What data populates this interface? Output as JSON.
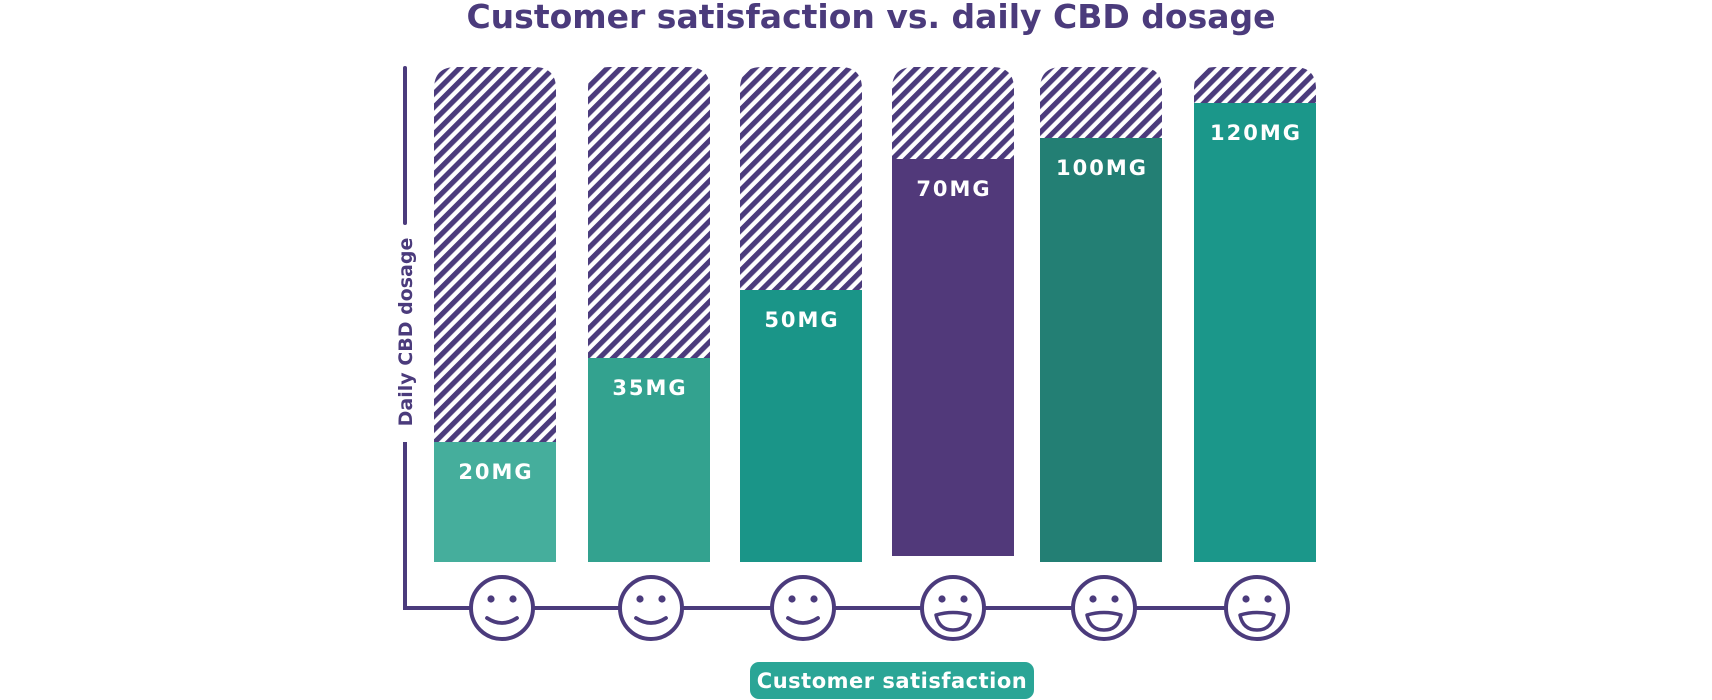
{
  "chart_data": {
    "type": "bar",
    "title": "Customer satisfaction vs. daily CBD dosage",
    "xlabel": "Customer satisfaction",
    "ylabel": "Daily CBD dosage",
    "ylim": [
      0,
      130
    ],
    "unit": "MG",
    "categories": [
      "smile-1",
      "smile-2",
      "smile-3",
      "grin-4",
      "grin-5",
      "grin-6"
    ],
    "values": [
      20,
      35,
      50,
      70,
      100,
      120
    ],
    "labels": [
      "20MG",
      "35MG",
      "50MG",
      "70MG",
      "100MG",
      "120MG"
    ],
    "satisfaction_faces": [
      "smile",
      "smile",
      "smile",
      "grin",
      "grin",
      "grin"
    ],
    "bar_colors": [
      "#45ae9c",
      "#33a28f",
      "#1a9588",
      "#51397a",
      "#237f74",
      "#1b978a"
    ],
    "remainder_pattern": "diagonal-stripes",
    "grid": false,
    "legend": "none"
  },
  "colors": {
    "primary_purple": "#4b3b7c",
    "stripe_purple": "#4b3b7c",
    "pill_teal": "#2aa596",
    "label_text": "#ffffff"
  }
}
